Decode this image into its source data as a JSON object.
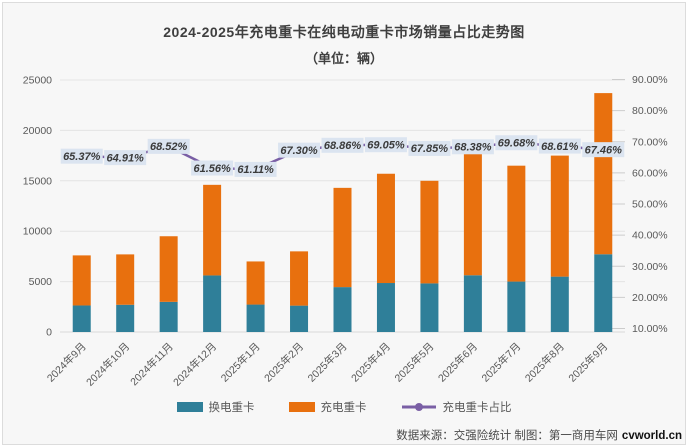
{
  "chart_data": {
    "type": "bar",
    "stacked": true,
    "title": "2024-2025年充电重卡在纯电动重卡市场销量占比走势图",
    "subtitle": "（单位：辆）",
    "categories": [
      "2024年9月",
      "2024年10月",
      "2024年11月",
      "2024年12月",
      "2025年1月",
      "2025年2月",
      "2025年3月",
      "2025年4月",
      "2025年5月",
      "2025年6月",
      "2025年7月",
      "2025年8月",
      "2025年9月"
    ],
    "series": [
      {
        "name": "换电重卡",
        "color": "#2f7f99",
        "values": [
          2632,
          2702,
          2991,
          5612,
          2722,
          2616,
          4453,
          4859,
          4822,
          5628,
          5003,
          5493,
          7712
        ]
      },
      {
        "name": "充电重卡",
        "color": "#e8700e",
        "values": [
          4968,
          4998,
          6509,
          8988,
          4278,
          5384,
          9847,
          10841,
          10178,
          12172,
          11497,
          12007,
          15988
        ]
      }
    ],
    "line_series": {
      "name": "充电重卡占比",
      "color": "#7a5fa5",
      "axis": "right",
      "values": [
        65.37,
        64.91,
        68.52,
        61.56,
        61.11,
        67.3,
        68.86,
        69.05,
        67.85,
        68.38,
        69.68,
        68.61,
        67.46
      ],
      "labels": [
        "65.37%",
        "64.91%",
        "68.52%",
        "61.56%",
        "61.11%",
        "67.30%",
        "68.86%",
        "69.05%",
        "67.85%",
        "68.38%",
        "69.68%",
        "68.61%",
        "67.46%"
      ]
    },
    "left_axis": {
      "min": 0,
      "max": 25000,
      "step": 5000,
      "ticks": [
        "0",
        "5000",
        "10000",
        "15000",
        "20000",
        "25000"
      ]
    },
    "right_axis": {
      "min": 10,
      "max": 90,
      "step": 10,
      "ticks": [
        "10.00%",
        "20.00%",
        "30.00%",
        "40.00%",
        "50.00%",
        "60.00%",
        "70.00%",
        "80.00%",
        "90.00%"
      ]
    },
    "grid": true,
    "legend_position": "bottom",
    "label_chip_bg": "#dbe4f0"
  },
  "footer": {
    "source_prefix": "数据来源：交强险统计 制图：第一商用车网",
    "site": "cvworld.cn"
  }
}
